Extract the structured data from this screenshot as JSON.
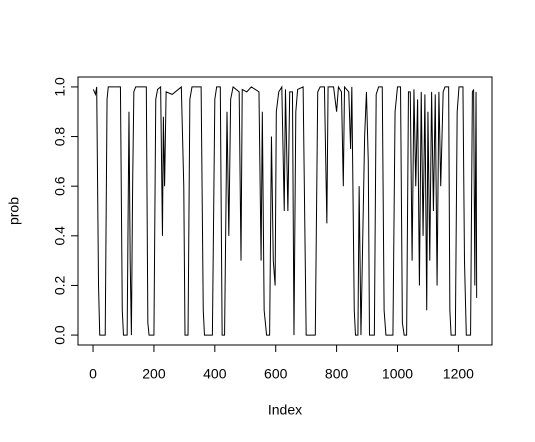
{
  "chart_data": {
    "type": "line",
    "xlabel": "Index",
    "ylabel": "prob",
    "xlim": [
      -49.4,
      1310.4
    ],
    "ylim": [
      -0.04,
      1.04
    ],
    "xticks": [
      0,
      200,
      400,
      600,
      800,
      1000,
      1200
    ],
    "yticks": [
      {
        "value": 0,
        "label": "0.0"
      },
      {
        "value": 0.2,
        "label": "0.2"
      },
      {
        "value": 0.4,
        "label": "0.4"
      },
      {
        "value": 0.6,
        "label": "0.6"
      },
      {
        "value": 0.8,
        "label": "0.8"
      },
      {
        "value": 1,
        "label": "1.0"
      }
    ],
    "color": "#000000",
    "x": [
      1,
      8,
      12,
      18,
      22,
      40,
      46,
      50,
      90,
      96,
      100,
      112,
      118,
      122,
      126,
      130,
      134,
      140,
      175,
      180,
      184,
      200,
      206,
      212,
      222,
      228,
      231,
      235,
      240,
      260,
      290,
      298,
      302,
      312,
      318,
      325,
      355,
      362,
      366,
      392,
      400,
      406,
      418,
      424,
      432,
      440,
      446,
      452,
      460,
      480,
      486,
      490,
      505,
      520,
      545,
      552,
      556,
      562,
      570,
      580,
      586,
      592,
      598,
      602,
      610,
      620,
      628,
      632,
      640,
      646,
      655,
      660,
      666,
      672,
      690,
      700,
      706,
      730,
      738,
      746,
      760,
      768,
      772,
      790,
      800,
      806,
      816,
      822,
      826,
      840,
      846,
      850,
      858,
      862,
      870,
      874,
      880,
      892,
      898,
      904,
      908,
      916,
      924,
      930,
      938,
      950,
      956,
      962,
      985,
      992,
      1000,
      1010,
      1016,
      1022,
      1030,
      1036,
      1042,
      1048,
      1054,
      1060,
      1066,
      1072,
      1078,
      1084,
      1090,
      1096,
      1100,
      1106,
      1112,
      1118,
      1124,
      1130,
      1136,
      1142,
      1150,
      1156,
      1168,
      1172,
      1176,
      1190,
      1196,
      1202,
      1215,
      1220,
      1226,
      1240,
      1246,
      1250,
      1254,
      1258,
      1260
    ],
    "values": [
      0.99,
      0.97,
      1.0,
      0.2,
      0.0,
      0.0,
      0.95,
      1.0,
      1.0,
      0.1,
      0.0,
      0.0,
      0.9,
      0.3,
      0.0,
      0.6,
      0.98,
      1.0,
      1.0,
      0.05,
      0.0,
      0.0,
      0.95,
      0.99,
      1.0,
      0.4,
      0.88,
      0.6,
      0.98,
      0.97,
      1.0,
      0.6,
      0.0,
      0.0,
      0.95,
      1.0,
      1.0,
      0.1,
      0.0,
      0.0,
      0.95,
      1.0,
      1.0,
      0.0,
      0.0,
      0.9,
      0.4,
      0.95,
      1.0,
      0.98,
      0.3,
      0.99,
      0.98,
      1.0,
      0.98,
      0.3,
      0.9,
      0.1,
      0.0,
      0.0,
      0.8,
      0.3,
      0.2,
      0.9,
      0.98,
      1.0,
      0.5,
      0.99,
      0.5,
      0.98,
      0.98,
      0.0,
      0.9,
      0.99,
      1.0,
      0.0,
      0.0,
      0.0,
      0.98,
      1.0,
      1.0,
      0.45,
      1.0,
      1.0,
      0.9,
      1.0,
      0.98,
      0.6,
      1.0,
      0.98,
      0.75,
      1.0,
      0.1,
      0.0,
      0.0,
      0.6,
      0.0,
      0.8,
      0.98,
      0.7,
      0.0,
      0.0,
      0.0,
      0.97,
      1.0,
      1.0,
      0.1,
      0.0,
      0.0,
      0.9,
      1.0,
      1.0,
      0.05,
      0.0,
      0.0,
      0.98,
      0.98,
      0.3,
      0.99,
      0.6,
      0.95,
      0.2,
      0.98,
      0.4,
      0.97,
      0.1,
      0.9,
      0.3,
      0.98,
      0.5,
      0.97,
      0.2,
      0.98,
      0.6,
      0.98,
      1.0,
      1.0,
      0.1,
      0.0,
      0.0,
      0.9,
      1.0,
      1.0,
      0.3,
      0.0,
      0.0,
      0.98,
      0.99,
      0.2,
      0.98,
      0.15
    ]
  }
}
